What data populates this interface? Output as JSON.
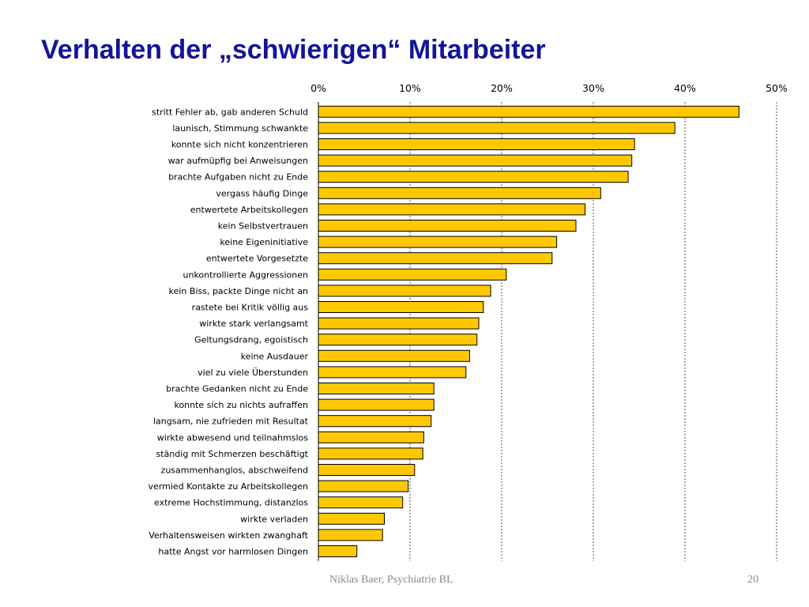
{
  "slide": {
    "title": "Verhalten der „schwierigen“ Mitarbeiter",
    "footer": "Niklas Baer, Psychiatrie BL",
    "page_number": "20"
  },
  "colors": {
    "title": "#14149a",
    "bar_fill": "#ffc800",
    "bar_stroke": "#000000",
    "grid": "#555555"
  },
  "chart_data": {
    "type": "bar",
    "orientation": "horizontal",
    "title": "",
    "xlabel": "",
    "ylabel": "",
    "xlim": [
      0,
      50
    ],
    "x_ticks": [
      "0%",
      "10%",
      "20%",
      "30%",
      "40%",
      "50%"
    ],
    "x_axis_position": "top",
    "grid": "vertical dashed lines at each 10%",
    "unit": "%",
    "categories": [
      "stritt Fehler ab, gab anderen Schuld",
      "launisch, Stimmung schwankte",
      "konnte sich nicht konzentrieren",
      "war aufmüpfig bei Anweisungen",
      "brachte Aufgaben nicht zu Ende",
      "vergass häufig Dinge",
      "entwertete Arbeitskollegen",
      "kein Selbstvertrauen",
      "keine Eigeninitiative",
      "entwertete Vorgesetzte",
      "unkontrollierte Aggressionen",
      "kein Biss, packte Dinge nicht an",
      "rastete bei Kritik völlig aus",
      "wirkte stark verlangsamt",
      "Geltungsdrang, egoistisch",
      "keine Ausdauer",
      "viel zu viele Überstunden",
      "brachte Gedanken nicht zu Ende",
      "konnte sich zu nichts aufraffen",
      "langsam, nie zufrieden mit Resultat",
      "wirkte abwesend und teilnahmslos",
      "ständig mit  Schmerzen beschäftigt",
      "zusammenhanglos, abschweifend",
      "vermied Kontakte zu Arbeitskollegen",
      "extreme Hochstimmung, distanzlos",
      "wirkte verladen",
      "Verhaltensweisen wirkten zwanghaft",
      "hatte Angst vor harmlosen Dingen"
    ],
    "values": [
      45.9,
      38.9,
      34.5,
      34.2,
      33.8,
      30.8,
      29.1,
      28.1,
      26.0,
      25.5,
      20.5,
      18.8,
      18.0,
      17.5,
      17.3,
      16.5,
      16.1,
      12.6,
      12.6,
      12.3,
      11.5,
      11.4,
      10.5,
      9.8,
      9.2,
      7.2,
      7.0,
      4.2
    ]
  }
}
